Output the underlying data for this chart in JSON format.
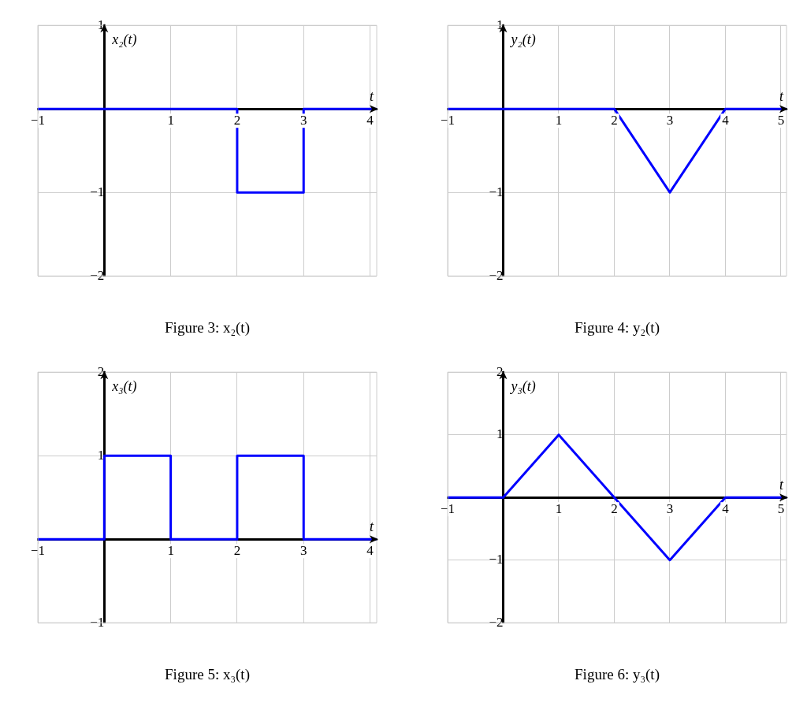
{
  "chart_data": [
    {
      "type": "line",
      "title": "Figure 3: x₂(t)",
      "xlabel": "t",
      "ylabel": "x₂(t)",
      "xlim": [
        -1,
        4.1
      ],
      "ylim": [
        -2,
        1
      ],
      "xticks": [
        -1,
        1,
        2,
        3,
        4
      ],
      "yticks": [
        -2,
        -1,
        1
      ],
      "grid": true,
      "legend": false,
      "marker": "none",
      "line_style": "solid",
      "series": [
        {
          "color": "#0000ff",
          "x": [
            -1,
            2,
            2,
            3,
            3,
            4.1
          ],
          "values": [
            0,
            0,
            -1,
            -1,
            0,
            0
          ]
        }
      ]
    },
    {
      "type": "line",
      "title": "Figure 4: y₂(t)",
      "xlabel": "t",
      "ylabel": "y₂(t)",
      "xlim": [
        -1,
        5.1
      ],
      "ylim": [
        -2,
        1
      ],
      "xticks": [
        -1,
        1,
        2,
        3,
        4,
        5
      ],
      "yticks": [
        -2,
        -1,
        1
      ],
      "grid": true,
      "legend": false,
      "marker": "none",
      "line_style": "solid",
      "series": [
        {
          "color": "#0000ff",
          "x": [
            -1,
            2,
            3,
            4,
            5.1
          ],
          "values": [
            0,
            0,
            -1,
            0,
            0
          ]
        }
      ]
    },
    {
      "type": "line",
      "title": "Figure 5: x₃(t)",
      "xlabel": "t",
      "ylabel": "x₃(t)",
      "xlim": [
        -1,
        4.1
      ],
      "ylim": [
        -1,
        2
      ],
      "xticks": [
        -1,
        1,
        2,
        3,
        4
      ],
      "yticks": [
        -1,
        1,
        2
      ],
      "grid": true,
      "legend": false,
      "marker": "none",
      "line_style": "solid",
      "series": [
        {
          "color": "#0000ff",
          "x": [
            -1,
            0,
            0,
            1,
            1,
            2,
            2,
            3,
            3,
            4.1
          ],
          "values": [
            0,
            0,
            1,
            1,
            0,
            0,
            1,
            1,
            0,
            0
          ]
        }
      ]
    },
    {
      "type": "line",
      "title": "Figure 6: y₃(t)",
      "xlabel": "t",
      "ylabel": "y₃(t)",
      "xlim": [
        -1,
        5.1
      ],
      "ylim": [
        -2,
        2
      ],
      "xticks": [
        -1,
        1,
        2,
        3,
        4,
        5
      ],
      "yticks": [
        -2,
        -1,
        1,
        2
      ],
      "grid": true,
      "legend": false,
      "marker": "none",
      "line_style": "solid",
      "series": [
        {
          "color": "#0000ff",
          "x": [
            -1,
            0,
            1,
            2,
            3,
            4,
            5.1
          ],
          "values": [
            0,
            0,
            1,
            0,
            -1,
            0,
            0
          ]
        }
      ]
    }
  ]
}
